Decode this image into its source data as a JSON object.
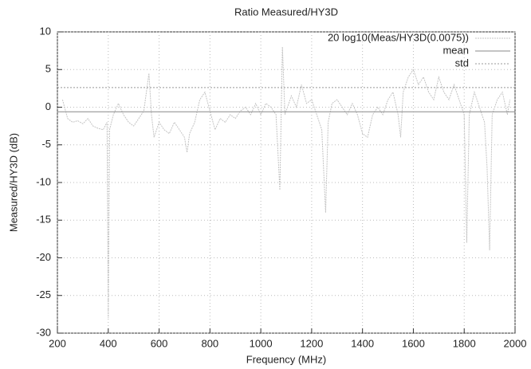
{
  "chart_data": {
    "type": "line",
    "title": "Ratio Measured/HY3D",
    "x_label": "Frequency (MHz)",
    "y_label": "Measured/HY3D (dB)",
    "xlim": [
      200,
      2000
    ],
    "ylim": [
      -30,
      10
    ],
    "xticks": [
      200,
      400,
      600,
      800,
      1000,
      1200,
      1400,
      1600,
      1800,
      2000
    ],
    "yticks": [
      -30,
      -25,
      -20,
      -15,
      -10,
      -5,
      0,
      5,
      10
    ],
    "grid": true,
    "legend": "upper right",
    "series": [
      {
        "name": "20 log10(Meas/HY3D(0.0075))",
        "color": "#c4c4c4",
        "dash": "2 1",
        "x": [
          220,
          240,
          260,
          280,
          300,
          320,
          340,
          360,
          380,
          395,
          400,
          405,
          420,
          440,
          460,
          480,
          500,
          520,
          540,
          560,
          570,
          580,
          600,
          620,
          640,
          660,
          680,
          700,
          710,
          720,
          740,
          760,
          780,
          800,
          820,
          840,
          860,
          880,
          900,
          920,
          940,
          960,
          980,
          1000,
          1020,
          1040,
          1060,
          1075,
          1085,
          1095,
          1120,
          1140,
          1160,
          1180,
          1200,
          1220,
          1240,
          1255,
          1265,
          1280,
          1300,
          1320,
          1340,
          1360,
          1380,
          1400,
          1420,
          1440,
          1460,
          1480,
          1500,
          1520,
          1540,
          1550,
          1560,
          1580,
          1600,
          1620,
          1640,
          1660,
          1680,
          1700,
          1720,
          1740,
          1760,
          1780,
          1800,
          1810,
          1820,
          1840,
          1860,
          1880,
          1890,
          1900,
          1910,
          1930,
          1950,
          1970,
          1980
        ],
        "values": [
          1,
          -1.5,
          -2,
          -1.8,
          -2.2,
          -1.5,
          -2.5,
          -2.8,
          -3,
          -2,
          -28,
          -3,
          -1,
          0.5,
          -1,
          -2,
          -2.5,
          -1.5,
          -0.5,
          4.5,
          -1,
          -4,
          -2,
          -3,
          -3.5,
          -2,
          -3,
          -4,
          -6,
          -3.5,
          -2,
          1,
          2,
          -0.5,
          -3,
          -1.5,
          -2,
          -1,
          -1.5,
          -0.5,
          0,
          -1,
          0.5,
          -1,
          0.5,
          0,
          -1,
          -11,
          8,
          -1,
          1.5,
          0,
          3,
          0.5,
          1,
          -1,
          -3,
          -14,
          -2,
          0.5,
          1,
          0,
          -1,
          0.5,
          -1,
          -3.5,
          -4,
          -1,
          0,
          -1,
          1,
          2,
          -1,
          -4,
          2,
          4,
          5,
          3,
          4,
          2,
          1,
          4,
          2,
          1,
          3,
          1,
          -1,
          -18,
          -1,
          2,
          0,
          -2,
          -8,
          -19,
          -1,
          1,
          2,
          -1,
          1
        ]
      },
      {
        "name": "mean",
        "color": "#888888",
        "dash": "none",
        "x": [
          200,
          2000
        ],
        "values": [
          -0.6,
          -0.6
        ]
      },
      {
        "name": "std",
        "color": "#999999",
        "dash": "2 2",
        "x": [
          200,
          2000
        ],
        "values": [
          2.6,
          2.6
        ]
      }
    ]
  }
}
